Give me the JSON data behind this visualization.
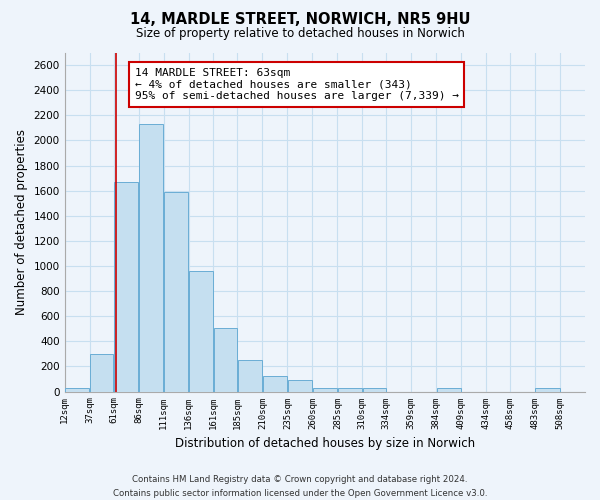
{
  "title_line1": "14, MARDLE STREET, NORWICH, NR5 9HU",
  "title_line2": "Size of property relative to detached houses in Norwich",
  "xlabel": "Distribution of detached houses by size in Norwich",
  "ylabel": "Number of detached properties",
  "bar_left_edges": [
    12,
    37,
    61,
    86,
    111,
    136,
    161,
    185,
    210,
    235,
    260,
    285,
    310,
    334,
    359,
    384,
    409,
    434,
    458,
    483
  ],
  "bar_widths": [
    25,
    24,
    25,
    25,
    25,
    25,
    24,
    25,
    25,
    25,
    25,
    25,
    24,
    25,
    25,
    25,
    25,
    24,
    25,
    25
  ],
  "bar_heights": [
    25,
    300,
    1670,
    2130,
    1590,
    960,
    510,
    255,
    120,
    90,
    30,
    25,
    25,
    0,
    0,
    25,
    0,
    0,
    0,
    25
  ],
  "bar_color": "#c5dff0",
  "bar_edgecolor": "#6aadd5",
  "marker_x": 63,
  "marker_color": "#cc0000",
  "ylim": [
    0,
    2700
  ],
  "yticks": [
    0,
    200,
    400,
    600,
    800,
    1000,
    1200,
    1400,
    1600,
    1800,
    2000,
    2200,
    2400,
    2600
  ],
  "xtick_labels": [
    "12sqm",
    "37sqm",
    "61sqm",
    "86sqm",
    "111sqm",
    "136sqm",
    "161sqm",
    "185sqm",
    "210sqm",
    "235sqm",
    "260sqm",
    "285sqm",
    "310sqm",
    "334sqm",
    "359sqm",
    "384sqm",
    "409sqm",
    "434sqm",
    "458sqm",
    "483sqm",
    "508sqm"
  ],
  "xtick_positions": [
    12,
    37,
    61,
    86,
    111,
    136,
    161,
    185,
    210,
    235,
    260,
    285,
    310,
    334,
    359,
    384,
    409,
    434,
    458,
    483,
    508
  ],
  "annotation_title": "14 MARDLE STREET: 63sqm",
  "annotation_line2": "← 4% of detached houses are smaller (343)",
  "annotation_line3": "95% of semi-detached houses are larger (7,339) →",
  "footer_line1": "Contains HM Land Registry data © Crown copyright and database right 2024.",
  "footer_line2": "Contains public sector information licensed under the Open Government Licence v3.0.",
  "bg_color": "#eef4fb",
  "grid_color": "#c8dff0",
  "xlim_left": 12,
  "xlim_right": 533
}
